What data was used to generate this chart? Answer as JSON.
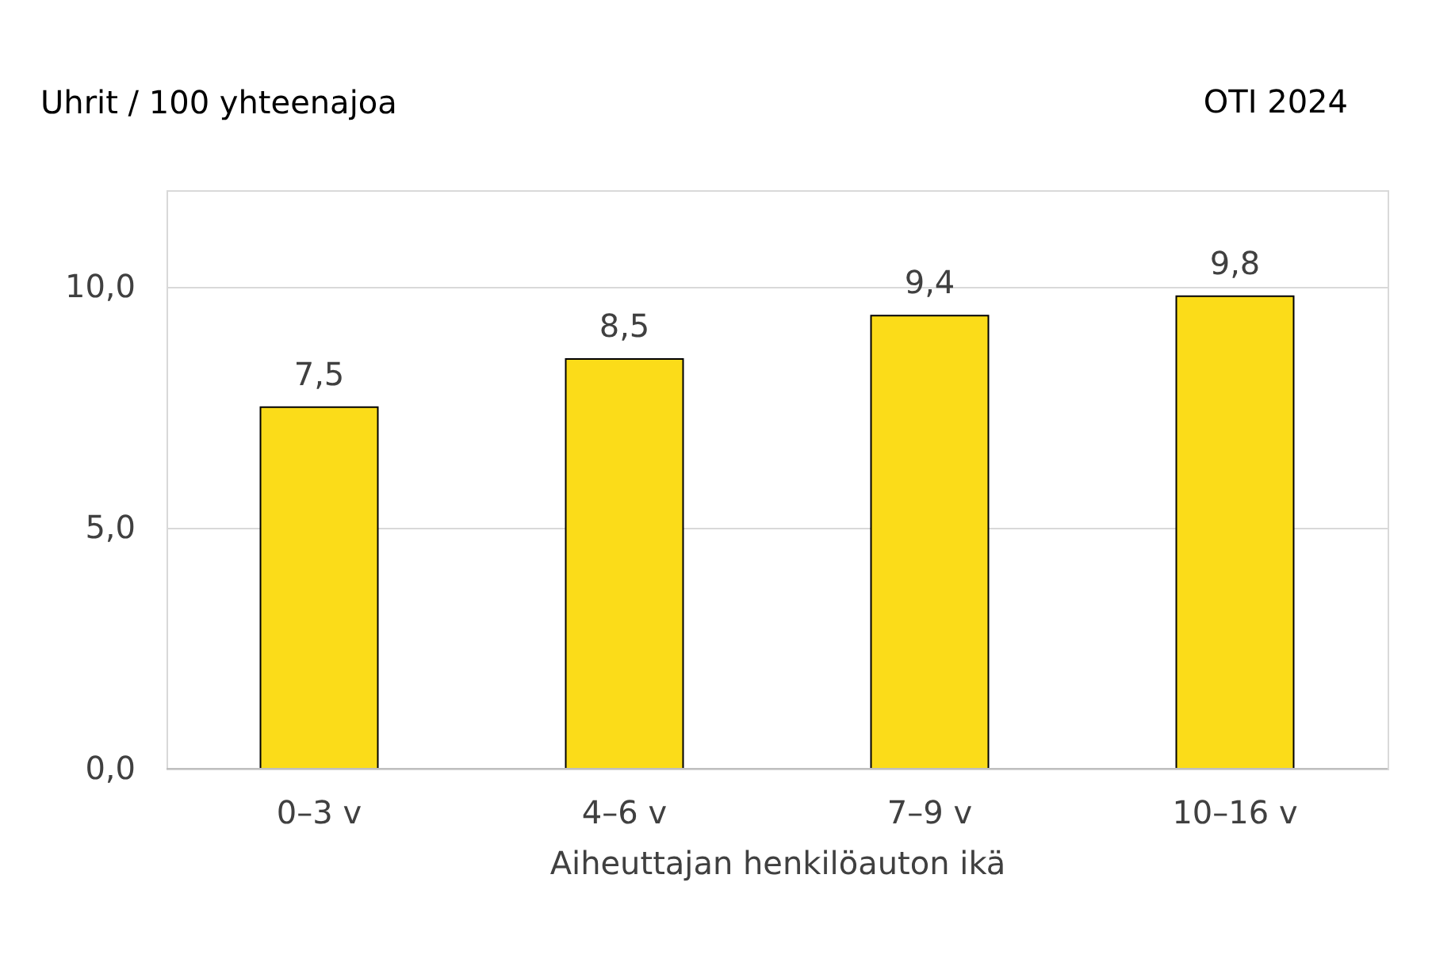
{
  "chart_data": {
    "type": "bar",
    "categories": [
      "0–3 v",
      "4–6 v",
      "7–9 v",
      "10–16 v"
    ],
    "values": [
      7.5,
      8.5,
      9.4,
      9.8
    ],
    "value_labels": [
      "7,5",
      "8,5",
      "9,4",
      "9,8"
    ],
    "color": "#fbdc19",
    "xlabel": "Aiheuttajan henkilöauton ikä",
    "ylabel": "Uhrit / 100 yhteenajoa",
    "annotations": [
      "OTI 2024"
    ],
    "ylim": [
      0,
      12
    ],
    "yticks": [
      {
        "value": 0,
        "label": "0,0"
      },
      {
        "value": 5,
        "label": "5,0"
      },
      {
        "value": 10,
        "label": "10,0"
      }
    ],
    "grid": "y"
  }
}
